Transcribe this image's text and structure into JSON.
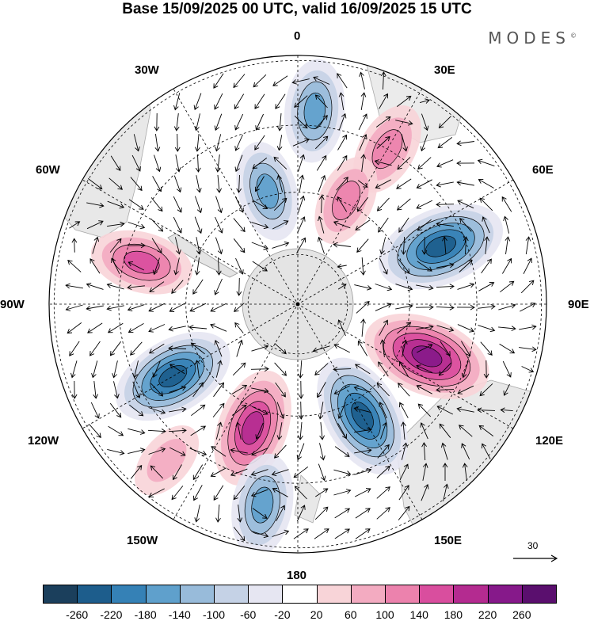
{
  "header": {
    "title": "Base 15/09/2025 00 UTC, valid 16/09/2025 15 UTC",
    "brand": "MODES",
    "brand_mark": "©"
  },
  "map": {
    "projection": "South polar stereographic",
    "longitude_labels": {
      "top": "0",
      "bottom": "180",
      "left": "90W",
      "right": "90E",
      "upper_left_1": "30W",
      "upper_left_2": "60W",
      "upper_right_1": "30E",
      "upper_right_2": "60E",
      "lower_left_1": "120W",
      "lower_left_2": "150W",
      "lower_right_1": "120E",
      "lower_right_2": "150E"
    },
    "reference_vector": {
      "label": "30",
      "value": 30
    },
    "anomaly_centers": [
      {
        "sign": "negative",
        "value": -150,
        "bearing_deg": 5,
        "radius_frac": 0.78
      },
      {
        "sign": "negative",
        "value": -140,
        "bearing_deg": -15,
        "radius_frac": 0.47
      },
      {
        "sign": "positive",
        "value": 120,
        "bearing_deg": 30,
        "radius_frac": 0.72
      },
      {
        "sign": "positive",
        "value": 110,
        "bearing_deg": 25,
        "radius_frac": 0.46
      },
      {
        "sign": "negative",
        "value": -250,
        "bearing_deg": 68,
        "radius_frac": 0.62
      },
      {
        "sign": "positive",
        "value": 250,
        "bearing_deg": 112,
        "radius_frac": 0.56
      },
      {
        "sign": "negative",
        "value": -240,
        "bearing_deg": 150,
        "radius_frac": 0.52
      },
      {
        "sign": "positive",
        "value": 210,
        "bearing_deg": -160,
        "radius_frac": 0.53
      },
      {
        "sign": "negative",
        "value": -150,
        "bearing_deg": -170,
        "radius_frac": 0.82
      },
      {
        "sign": "negative",
        "value": -230,
        "bearing_deg": -120,
        "radius_frac": 0.58
      },
      {
        "sign": "positive",
        "value": 150,
        "bearing_deg": -75,
        "radius_frac": 0.65
      },
      {
        "sign": "positive",
        "value": 70,
        "bearing_deg": -140,
        "radius_frac": 0.82
      }
    ]
  },
  "colorbar": {
    "ticks": [
      "-260",
      "-220",
      "-180",
      "-140",
      "-100",
      "-60",
      "-20",
      "20",
      "60",
      "100",
      "140",
      "180",
      "220",
      "260"
    ],
    "colors": [
      "#1b3f5c",
      "#1d5d8c",
      "#3581b6",
      "#5fa0cc",
      "#98bbda",
      "#c5d2e6",
      "#e6e6f2",
      "#ffffff",
      "#f8d4d8",
      "#f3abc1",
      "#ec82ad",
      "#d94e9e",
      "#b42b90",
      "#86198a",
      "#5a0f6e"
    ]
  }
}
